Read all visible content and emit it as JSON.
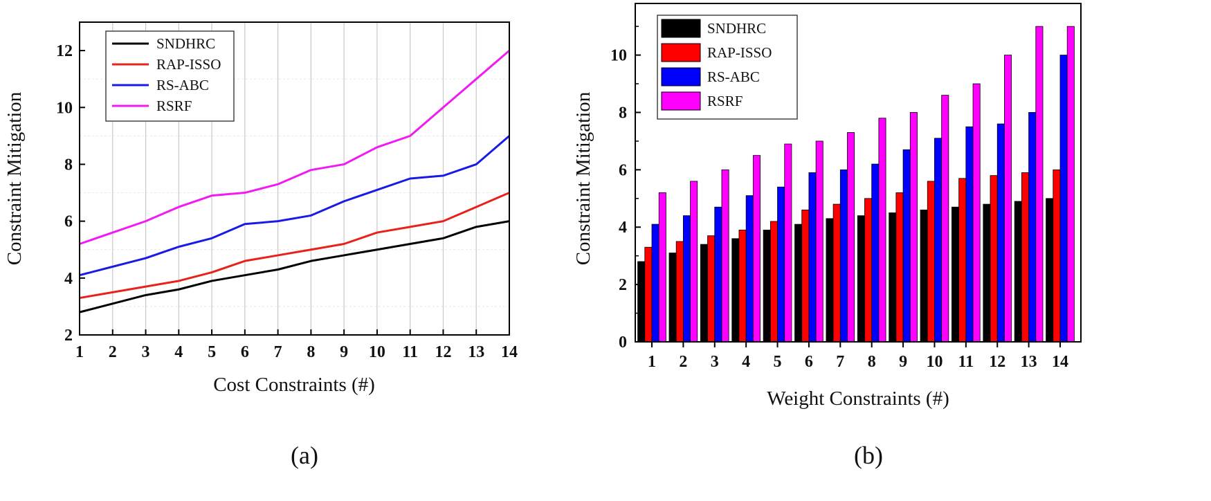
{
  "chart_data": [
    {
      "type": "line",
      "panel_label": "(a)",
      "xlabel": "Cost Constraints (#)",
      "ylabel": "Constraint Mitigation",
      "x": [
        1,
        2,
        3,
        4,
        5,
        6,
        7,
        8,
        9,
        10,
        11,
        12,
        13,
        14
      ],
      "xticks": [
        "1",
        "2",
        "3",
        "4",
        "5",
        "6",
        "7",
        "8",
        "9",
        "10",
        "11",
        "12",
        "13",
        "14"
      ],
      "ylim": [
        2,
        13
      ],
      "yticks": [
        "2",
        "4",
        "6",
        "8",
        "10",
        "12"
      ],
      "grid": "vertical",
      "legend_position": "top-left",
      "series": [
        {
          "name": "SNDHRC",
          "color": "#000000",
          "values": [
            2.8,
            3.1,
            3.4,
            3.6,
            3.9,
            4.1,
            4.3,
            4.6,
            4.8,
            5.0,
            5.2,
            5.4,
            5.8,
            6.0
          ]
        },
        {
          "name": "RAP-ISSO",
          "color": "#e8211a",
          "values": [
            3.3,
            3.5,
            3.7,
            3.9,
            4.2,
            4.6,
            4.8,
            5.0,
            5.2,
            5.6,
            5.8,
            6.0,
            6.5,
            7.0
          ]
        },
        {
          "name": "RS-ABC",
          "color": "#1a1ae8",
          "values": [
            4.1,
            4.4,
            4.7,
            5.1,
            5.4,
            5.9,
            6.0,
            6.2,
            6.7,
            7.1,
            7.5,
            7.6,
            8.0,
            9.0
          ]
        },
        {
          "name": "RSRF",
          "color": "#f21af2",
          "values": [
            5.2,
            5.6,
            6.0,
            6.5,
            6.9,
            7.0,
            7.3,
            7.8,
            8.0,
            8.6,
            9.0,
            10.0,
            11.0,
            12.0
          ]
        }
      ]
    },
    {
      "type": "bar",
      "panel_label": "(b)",
      "xlabel": "Weight Constraints (#)",
      "ylabel": "Constraint Mitigation",
      "categories": [
        "1",
        "2",
        "3",
        "4",
        "5",
        "6",
        "7",
        "8",
        "9",
        "10",
        "11",
        "12",
        "13",
        "14"
      ],
      "ylim": [
        0,
        11.8
      ],
      "yticks": [
        "0",
        "2",
        "4",
        "6",
        "8",
        "10"
      ],
      "grid": "none",
      "legend_position": "top-left",
      "series": [
        {
          "name": "SNDHRC",
          "color": "#000000",
          "values": [
            2.8,
            3.1,
            3.4,
            3.6,
            3.9,
            4.1,
            4.3,
            4.4,
            4.5,
            4.6,
            4.7,
            4.8,
            4.9,
            5.0
          ]
        },
        {
          "name": "RAP-ISSO",
          "color": "#ff0000",
          "values": [
            3.3,
            3.5,
            3.7,
            3.9,
            4.2,
            4.6,
            4.8,
            5.0,
            5.2,
            5.6,
            5.7,
            5.8,
            5.9,
            6.0
          ]
        },
        {
          "name": "RS-ABC",
          "color": "#0000ff",
          "values": [
            4.1,
            4.4,
            4.7,
            5.1,
            5.4,
            5.9,
            6.0,
            6.2,
            6.7,
            7.1,
            7.5,
            7.6,
            8.0,
            10.0
          ]
        },
        {
          "name": "RSRF",
          "color": "#ff00ff",
          "values": [
            5.2,
            5.6,
            6.0,
            6.5,
            6.9,
            7.0,
            7.3,
            7.8,
            8.0,
            8.6,
            9.0,
            10.0,
            11.0,
            11.0
          ]
        }
      ]
    }
  ]
}
